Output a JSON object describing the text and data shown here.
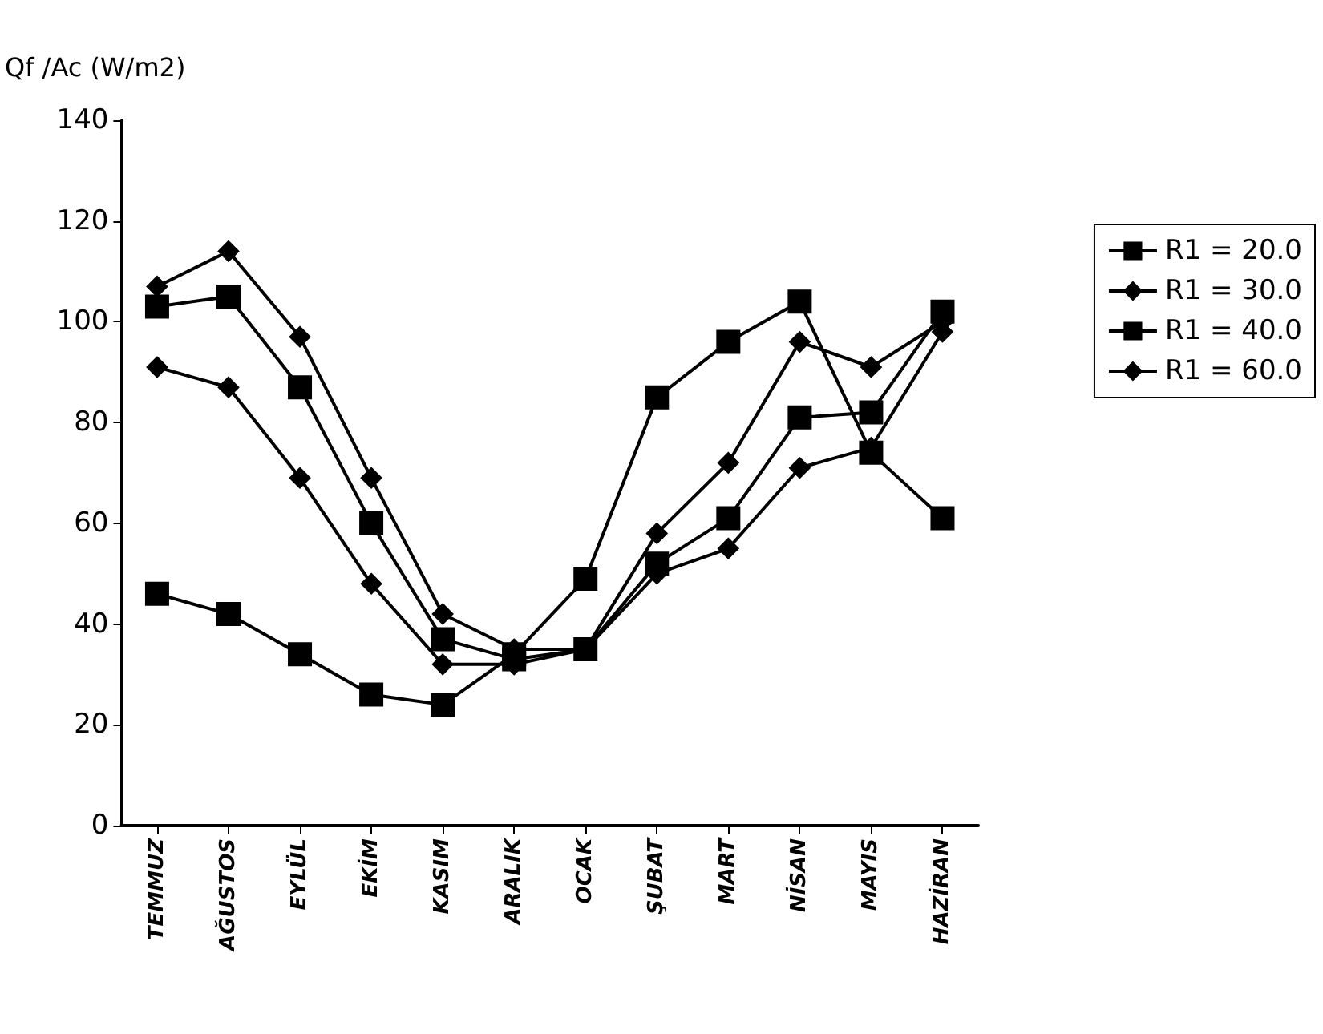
{
  "chart_data": {
    "type": "line",
    "ylabel": "Qf /Ac (W/m2)",
    "categories": [
      "TEMMUZ",
      "AĞUSTOS",
      "EYLÜL",
      "EKİM",
      "KASIM",
      "ARALIK",
      "OCAK",
      "ŞUBAT",
      "MART",
      "NİSAN",
      "MAYIS",
      "HAZİRAN"
    ],
    "series": [
      {
        "name": "R1 = 20.0",
        "color": "#000000",
        "marker": "square",
        "values": [
          46,
          42,
          34,
          26,
          24,
          34,
          49,
          85,
          96,
          104,
          74,
          61
        ]
      },
      {
        "name": "R1 = 30.0",
        "color": "#000000",
        "marker": "diamond",
        "values": [
          91,
          87,
          69,
          48,
          32,
          32,
          35,
          58,
          72,
          96,
          91,
          100
        ]
      },
      {
        "name": "R1 = 40.0",
        "color": "#000000",
        "marker": "square",
        "values": [
          103,
          105,
          87,
          60,
          37,
          33,
          35,
          52,
          61,
          81,
          82,
          102
        ]
      },
      {
        "name": "R1 = 60.0",
        "color": "#000000",
        "marker": "diamond",
        "values": [
          107,
          114,
          97,
          69,
          42,
          35,
          35,
          50,
          55,
          71,
          75,
          98
        ]
      }
    ],
    "ylim": [
      0,
      140
    ],
    "yticks": [
      0,
      20,
      40,
      60,
      80,
      100,
      120,
      140
    ],
    "grid": false,
    "legend": "right",
    "line_style": "solid"
  }
}
